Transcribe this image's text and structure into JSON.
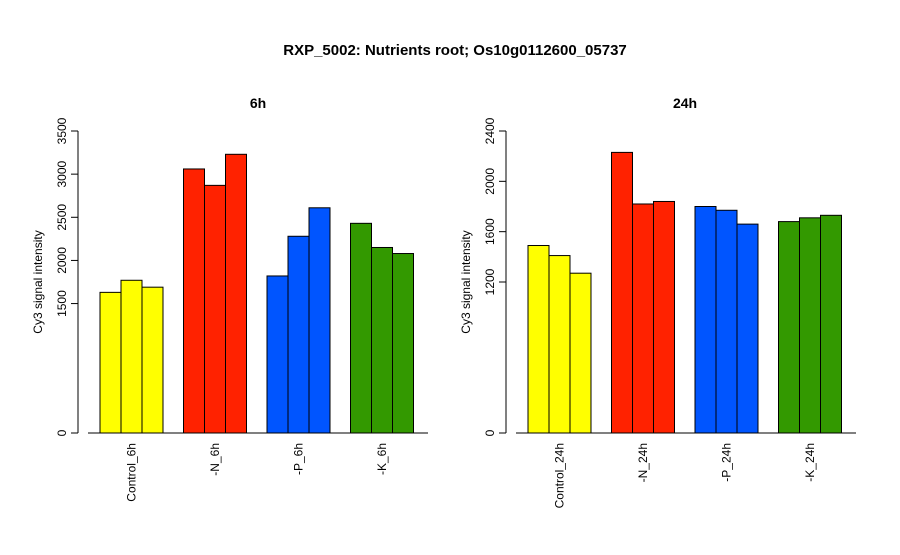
{
  "main_title": "RXP_5002: Nutrients root; Os10g0112600_05737",
  "chart_data": [
    {
      "type": "bar",
      "title": "6h",
      "ylabel": "Cy3 signal intensity",
      "xlabel": "",
      "ylim": [
        0,
        3500
      ],
      "yticks": [
        0,
        1500,
        2000,
        2500,
        3000,
        3500
      ],
      "categories": [
        "Control_6h",
        "-N_6h",
        "-P_6h",
        "-K_6h"
      ],
      "colors": [
        "#ffff00",
        "#ff2200",
        "#0055ff",
        "#339900"
      ],
      "replicates": [
        [
          1630,
          1770,
          1690
        ],
        [
          3060,
          2870,
          3230
        ],
        [
          1820,
          2280,
          2610
        ],
        [
          2430,
          2150,
          2080
        ]
      ],
      "grid": false
    },
    {
      "type": "bar",
      "title": "24h",
      "ylabel": "Cy3 signal intensity",
      "xlabel": "",
      "ylim": [
        0,
        2400
      ],
      "yticks": [
        0,
        1200,
        1600,
        2000,
        2400
      ],
      "categories": [
        "Control_24h",
        "-N_24h",
        "-P_24h",
        "-K_24h"
      ],
      "colors": [
        "#ffff00",
        "#ff2200",
        "#0055ff",
        "#339900"
      ],
      "replicates": [
        [
          1490,
          1410,
          1270
        ],
        [
          2230,
          1820,
          1840
        ],
        [
          1800,
          1770,
          1660
        ],
        [
          1680,
          1710,
          1730
        ]
      ],
      "grid": false
    }
  ]
}
